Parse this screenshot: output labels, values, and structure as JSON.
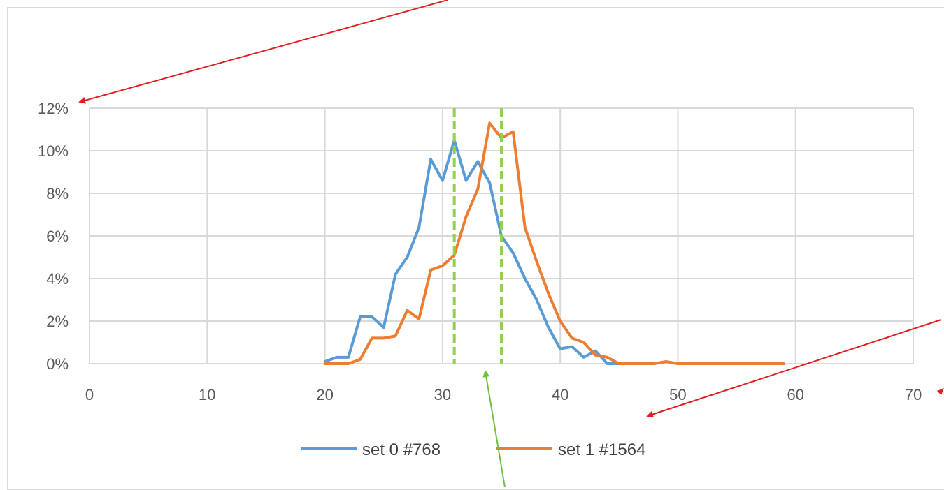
{
  "chart_data": {
    "type": "line",
    "title": "",
    "xlabel": "",
    "ylabel": "",
    "xlim": [
      0,
      70
    ],
    "ylim": [
      0,
      0.12
    ],
    "x_ticks": [
      0,
      10,
      20,
      30,
      40,
      50,
      60,
      70
    ],
    "x_tick_labels": [
      "0",
      "10",
      "20",
      "30",
      "40",
      "50",
      "60",
      "70"
    ],
    "y_ticks": [
      0,
      0.02,
      0.04,
      0.06,
      0.08,
      0.1,
      0.12
    ],
    "y_tick_labels": [
      "0%",
      "2%",
      "4%",
      "6%",
      "8%",
      "10%",
      "12%"
    ],
    "grid": true,
    "legend_position": "bottom",
    "series": [
      {
        "name": "set 0 #768",
        "color": "#5b9bd5",
        "x": [
          20,
          21,
          22,
          23,
          24,
          25,
          26,
          27,
          28,
          29,
          30,
          31,
          32,
          33,
          34,
          35,
          36,
          37,
          38,
          39,
          40,
          41,
          42,
          43,
          44,
          45,
          46
        ],
        "values": [
          0.001,
          0.003,
          0.003,
          0.022,
          0.022,
          0.017,
          0.042,
          0.05,
          0.064,
          0.096,
          0.086,
          0.105,
          0.086,
          0.095,
          0.085,
          0.06,
          0.052,
          0.04,
          0.03,
          0.017,
          0.007,
          0.008,
          0.003,
          0.006,
          0.0,
          0.0,
          0.0
        ]
      },
      {
        "name": "set 1 #1564",
        "color": "#ed7d31",
        "x": [
          20,
          21,
          22,
          23,
          24,
          25,
          26,
          27,
          28,
          29,
          30,
          31,
          32,
          33,
          34,
          35,
          36,
          37,
          38,
          39,
          40,
          41,
          42,
          43,
          44,
          45,
          46,
          47,
          48,
          49,
          50,
          51,
          52,
          53,
          54,
          55,
          56,
          57,
          58,
          59
        ],
        "values": [
          0.0,
          0.0,
          0.0,
          0.002,
          0.012,
          0.012,
          0.013,
          0.025,
          0.021,
          0.044,
          0.046,
          0.051,
          0.069,
          0.082,
          0.113,
          0.106,
          0.109,
          0.064,
          0.048,
          0.033,
          0.02,
          0.012,
          0.01,
          0.004,
          0.003,
          0.0,
          0.0,
          0.0,
          0.0,
          0.001,
          0.0,
          0.0,
          0.0,
          0.0,
          0.0,
          0.0,
          0.0,
          0.0,
          0.0,
          0.0
        ]
      }
    ],
    "reference_lines": [
      {
        "x": 31,
        "color": "#92d050",
        "style": "dashed"
      },
      {
        "x": 35,
        "color": "#92d050",
        "style": "dashed"
      }
    ]
  },
  "annotation_arrows": {
    "red_color": "#e02020",
    "green_color": "#70c040"
  }
}
